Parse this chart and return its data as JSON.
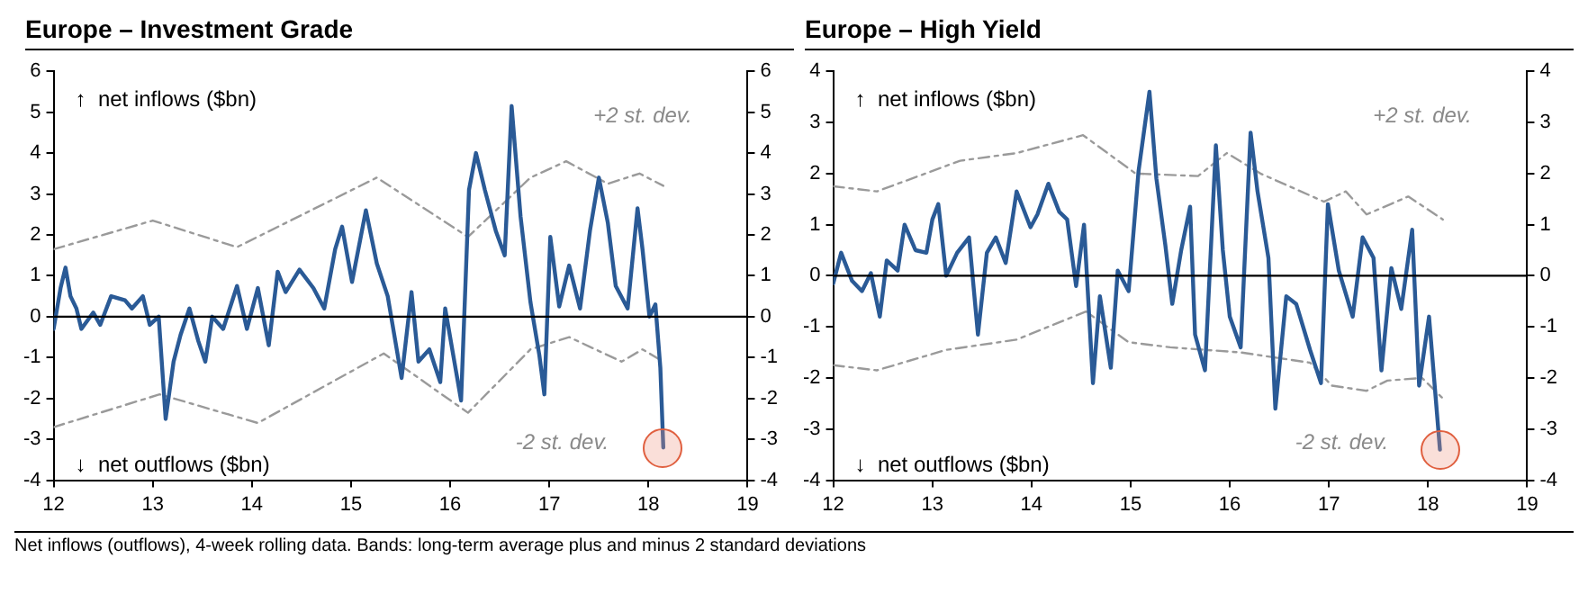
{
  "chart_data": [
    {
      "type": "line",
      "title": "Europe – Investment Grade",
      "xlim": [
        12,
        19
      ],
      "xticks": [
        12,
        13,
        14,
        15,
        16,
        17,
        18,
        19
      ],
      "ylim": [
        -4,
        6
      ],
      "yticks": [
        -4,
        -3,
        -2,
        -1,
        0,
        1,
        2,
        3,
        4,
        5,
        6
      ],
      "y2lim": [
        -4,
        6
      ],
      "y2ticks": [
        -4,
        -3,
        -2,
        -1,
        0,
        1,
        2,
        3,
        4,
        5,
        6
      ],
      "grid": false,
      "legend": false,
      "marker": "none",
      "ref_lines": [
        {
          "axis": "y",
          "value": 0,
          "color": "#000000"
        }
      ],
      "series": [
        {
          "color": "#2a5a96",
          "line_style": "solid",
          "x": [
            12,
            12.07,
            12.12,
            12.17,
            12.23,
            12.28,
            12.4,
            12.47,
            12.58,
            12.72,
            12.79,
            12.9,
            12.97,
            13.06,
            13.13,
            13.21,
            13.28,
            13.37,
            13.46,
            13.53,
            13.6,
            13.71,
            13.85,
            13.95,
            14.06,
            14.17,
            14.26,
            14.34,
            14.48,
            14.62,
            14.73,
            14.84,
            14.91,
            15.01,
            15.15,
            15.26,
            15.37,
            15.51,
            15.61,
            15.68,
            15.79,
            15.9,
            15.95,
            16.11,
            16.19,
            16.26,
            16.35,
            16.46,
            16.55,
            16.62,
            16.71,
            16.81,
            16.9,
            16.95,
            17.01,
            17.1,
            17.2,
            17.31,
            17.41,
            17.5,
            17.59,
            17.67,
            17.79,
            17.89,
            17.94,
            18.01,
            18.07,
            18.12,
            18.15
          ],
          "values": [
            -0.3,
            0.7,
            1.2,
            0.5,
            0.2,
            -0.3,
            0.1,
            -0.2,
            0.5,
            0.4,
            0.2,
            0.5,
            -0.2,
            0,
            -2.5,
            -1.1,
            -0.45,
            0.2,
            -0.6,
            -1.1,
            0,
            -0.3,
            0.75,
            -0.3,
            0.7,
            -0.7,
            1.1,
            0.6,
            1.15,
            0.7,
            0.2,
            1.65,
            2.2,
            0.85,
            2.6,
            1.3,
            0.5,
            -1.5,
            0.6,
            -1.1,
            -0.8,
            -1.6,
            0.2,
            -2.05,
            3.1,
            4,
            3.1,
            2.1,
            1.5,
            5.15,
            2.45,
            0.35,
            -0.95,
            -1.9,
            1.95,
            0.25,
            1.25,
            0.2,
            2.1,
            3.4,
            2.3,
            0.75,
            0.2,
            2.65,
            1.65,
            0,
            0.3,
            -1.25,
            -3.2
          ]
        },
        {
          "color": "#9a9a9a",
          "line_style": "dashed",
          "x": [
            12,
            13,
            13.85,
            15.26,
            16.18,
            16.81,
            17.17,
            17.59,
            17.91,
            18.15
          ],
          "values": [
            1.65,
            2.35,
            1.7,
            3.4,
            1.95,
            3.4,
            3.8,
            3.25,
            3.5,
            3.2
          ]
        },
        {
          "color": "#9a9a9a",
          "line_style": "dashed",
          "x": [
            12,
            13.07,
            14.06,
            15.33,
            16.18,
            16.81,
            17.2,
            17.73,
            17.94,
            18.15
          ],
          "values": [
            -2.7,
            -1.9,
            -2.6,
            -0.9,
            -2.35,
            -0.8,
            -0.5,
            -1.1,
            -0.8,
            -1.1
          ]
        }
      ],
      "annotations": [
        "↑  net inflows ($bn)",
        "↓  net outflows ($bn)",
        "+2 st. dev.",
        "-2 st. dev.",
        "Net inflows (outflows), 4-week rolling data. Bands: long-term average plus and minus 2 standard deviations"
      ]
    },
    {
      "type": "line",
      "title": "Europe – High Yield",
      "xlim": [
        12,
        19
      ],
      "xticks": [
        12,
        13,
        14,
        15,
        16,
        17,
        18,
        19
      ],
      "ylim": [
        -4,
        4
      ],
      "yticks": [
        -4,
        -3,
        -2,
        -1,
        0,
        1,
        2,
        3,
        4
      ],
      "y2lim": [
        -4,
        4
      ],
      "y2ticks": [
        -4,
        -3,
        -2,
        -1,
        0,
        1,
        2,
        3,
        4
      ],
      "grid": false,
      "legend": false,
      "marker": "none",
      "ref_lines": [
        {
          "axis": "y",
          "value": 0,
          "color": "#000000"
        }
      ],
      "series": [
        {
          "color": "#2a5a96",
          "line_style": "solid",
          "x": [
            12,
            12.08,
            12.19,
            12.29,
            12.38,
            12.47,
            12.54,
            12.65,
            12.72,
            12.83,
            12.94,
            13,
            13.06,
            13.14,
            13.25,
            13.37,
            13.46,
            13.55,
            13.64,
            13.74,
            13.85,
            13.99,
            14.06,
            14.17,
            14.28,
            14.36,
            14.45,
            14.53,
            14.62,
            14.69,
            14.8,
            14.87,
            14.98,
            15.08,
            15.19,
            15.26,
            15.35,
            15.42,
            15.51,
            15.6,
            15.65,
            15.75,
            15.86,
            15.93,
            16,
            16.11,
            16.21,
            16.28,
            16.39,
            16.46,
            16.57,
            16.67,
            16.81,
            16.92,
            16.99,
            17.1,
            17.24,
            17.34,
            17.45,
            17.53,
            17.63,
            17.73,
            17.84,
            17.91,
            18.01,
            18.12
          ],
          "values": [
            -0.15,
            0.45,
            -0.1,
            -0.3,
            0.05,
            -0.8,
            0.3,
            0.1,
            1,
            0.5,
            0.45,
            1.1,
            1.4,
            0,
            0.45,
            0.75,
            -1.15,
            0.45,
            0.75,
            0.25,
            1.65,
            0.95,
            1.2,
            1.8,
            1.25,
            1.1,
            -0.2,
            1,
            -2.1,
            -0.4,
            -1.8,
            0.1,
            -0.3,
            2.05,
            3.6,
            1.9,
            0.6,
            -0.55,
            0.5,
            1.35,
            -1.15,
            -1.85,
            2.55,
            0.5,
            -0.8,
            -1.4,
            2.8,
            1.65,
            0.35,
            -2.6,
            -0.4,
            -0.55,
            -1.45,
            -2.1,
            1.4,
            0.1,
            -0.8,
            0.75,
            0.35,
            -1.85,
            0.15,
            -0.65,
            0.9,
            -2.15,
            -0.8,
            -3.4
          ]
        },
        {
          "color": "#9a9a9a",
          "line_style": "dashed",
          "x": [
            12,
            12.44,
            13.28,
            13.85,
            14.52,
            15.05,
            15.68,
            15.97,
            16.31,
            16.95,
            17.17,
            17.38,
            17.8,
            18.15
          ],
          "values": [
            1.75,
            1.65,
            2.25,
            2.4,
            2.75,
            2,
            1.95,
            2.4,
            2,
            1.45,
            1.65,
            1.2,
            1.55,
            1.1
          ]
        },
        {
          "color": "#9a9a9a",
          "line_style": "dashed",
          "x": [
            12,
            12.44,
            13.14,
            13.85,
            14.55,
            14.98,
            15.4,
            16.11,
            16.81,
            17.03,
            17.38,
            17.59,
            17.94,
            18.15
          ],
          "values": [
            -1.75,
            -1.85,
            -1.45,
            -1.25,
            -0.7,
            -1.3,
            -1.4,
            -1.5,
            -1.7,
            -2.15,
            -2.25,
            -2.05,
            -2,
            -2.4
          ]
        }
      ],
      "annotations": [
        "↑  net inflows ($bn)",
        "↓  net outflows ($bn)",
        "+2 st. dev.",
        "-2 st. dev."
      ]
    }
  ]
}
